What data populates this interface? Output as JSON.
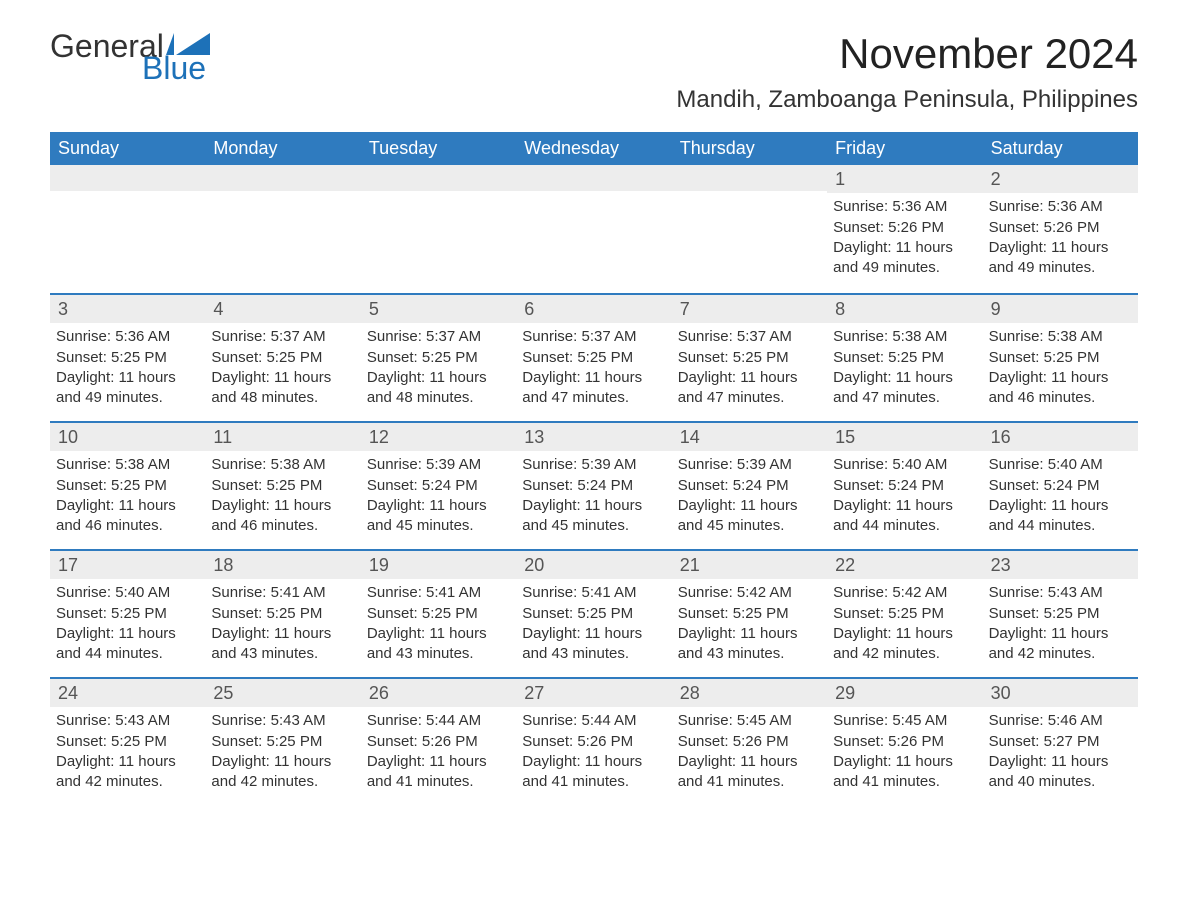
{
  "logo": {
    "word1": "General",
    "word2": "Blue"
  },
  "title": "November 2024",
  "location": "Mandih, Zamboanga Peninsula, Philippines",
  "colors": {
    "header_bg": "#2f7bbf",
    "header_text": "#ffffff",
    "daynum_bg": "#ededed",
    "border": "#2f7bbf",
    "logo_blue": "#1d71b8",
    "text": "#333333"
  },
  "day_labels": [
    "Sunday",
    "Monday",
    "Tuesday",
    "Wednesday",
    "Thursday",
    "Friday",
    "Saturday"
  ],
  "weeks": [
    [
      {
        "blank": true
      },
      {
        "blank": true
      },
      {
        "blank": true
      },
      {
        "blank": true
      },
      {
        "blank": true
      },
      {
        "num": "1",
        "sunrise": "Sunrise: 5:36 AM",
        "sunset": "Sunset: 5:26 PM",
        "daylight": "Daylight: 11 hours and 49 minutes."
      },
      {
        "num": "2",
        "sunrise": "Sunrise: 5:36 AM",
        "sunset": "Sunset: 5:26 PM",
        "daylight": "Daylight: 11 hours and 49 minutes."
      }
    ],
    [
      {
        "num": "3",
        "sunrise": "Sunrise: 5:36 AM",
        "sunset": "Sunset: 5:25 PM",
        "daylight": "Daylight: 11 hours and 49 minutes."
      },
      {
        "num": "4",
        "sunrise": "Sunrise: 5:37 AM",
        "sunset": "Sunset: 5:25 PM",
        "daylight": "Daylight: 11 hours and 48 minutes."
      },
      {
        "num": "5",
        "sunrise": "Sunrise: 5:37 AM",
        "sunset": "Sunset: 5:25 PM",
        "daylight": "Daylight: 11 hours and 48 minutes."
      },
      {
        "num": "6",
        "sunrise": "Sunrise: 5:37 AM",
        "sunset": "Sunset: 5:25 PM",
        "daylight": "Daylight: 11 hours and 47 minutes."
      },
      {
        "num": "7",
        "sunrise": "Sunrise: 5:37 AM",
        "sunset": "Sunset: 5:25 PM",
        "daylight": "Daylight: 11 hours and 47 minutes."
      },
      {
        "num": "8",
        "sunrise": "Sunrise: 5:38 AM",
        "sunset": "Sunset: 5:25 PM",
        "daylight": "Daylight: 11 hours and 47 minutes."
      },
      {
        "num": "9",
        "sunrise": "Sunrise: 5:38 AM",
        "sunset": "Sunset: 5:25 PM",
        "daylight": "Daylight: 11 hours and 46 minutes."
      }
    ],
    [
      {
        "num": "10",
        "sunrise": "Sunrise: 5:38 AM",
        "sunset": "Sunset: 5:25 PM",
        "daylight": "Daylight: 11 hours and 46 minutes."
      },
      {
        "num": "11",
        "sunrise": "Sunrise: 5:38 AM",
        "sunset": "Sunset: 5:25 PM",
        "daylight": "Daylight: 11 hours and 46 minutes."
      },
      {
        "num": "12",
        "sunrise": "Sunrise: 5:39 AM",
        "sunset": "Sunset: 5:24 PM",
        "daylight": "Daylight: 11 hours and 45 minutes."
      },
      {
        "num": "13",
        "sunrise": "Sunrise: 5:39 AM",
        "sunset": "Sunset: 5:24 PM",
        "daylight": "Daylight: 11 hours and 45 minutes."
      },
      {
        "num": "14",
        "sunrise": "Sunrise: 5:39 AM",
        "sunset": "Sunset: 5:24 PM",
        "daylight": "Daylight: 11 hours and 45 minutes."
      },
      {
        "num": "15",
        "sunrise": "Sunrise: 5:40 AM",
        "sunset": "Sunset: 5:24 PM",
        "daylight": "Daylight: 11 hours and 44 minutes."
      },
      {
        "num": "16",
        "sunrise": "Sunrise: 5:40 AM",
        "sunset": "Sunset: 5:24 PM",
        "daylight": "Daylight: 11 hours and 44 minutes."
      }
    ],
    [
      {
        "num": "17",
        "sunrise": "Sunrise: 5:40 AM",
        "sunset": "Sunset: 5:25 PM",
        "daylight": "Daylight: 11 hours and 44 minutes."
      },
      {
        "num": "18",
        "sunrise": "Sunrise: 5:41 AM",
        "sunset": "Sunset: 5:25 PM",
        "daylight": "Daylight: 11 hours and 43 minutes."
      },
      {
        "num": "19",
        "sunrise": "Sunrise: 5:41 AM",
        "sunset": "Sunset: 5:25 PM",
        "daylight": "Daylight: 11 hours and 43 minutes."
      },
      {
        "num": "20",
        "sunrise": "Sunrise: 5:41 AM",
        "sunset": "Sunset: 5:25 PM",
        "daylight": "Daylight: 11 hours and 43 minutes."
      },
      {
        "num": "21",
        "sunrise": "Sunrise: 5:42 AM",
        "sunset": "Sunset: 5:25 PM",
        "daylight": "Daylight: 11 hours and 43 minutes."
      },
      {
        "num": "22",
        "sunrise": "Sunrise: 5:42 AM",
        "sunset": "Sunset: 5:25 PM",
        "daylight": "Daylight: 11 hours and 42 minutes."
      },
      {
        "num": "23",
        "sunrise": "Sunrise: 5:43 AM",
        "sunset": "Sunset: 5:25 PM",
        "daylight": "Daylight: 11 hours and 42 minutes."
      }
    ],
    [
      {
        "num": "24",
        "sunrise": "Sunrise: 5:43 AM",
        "sunset": "Sunset: 5:25 PM",
        "daylight": "Daylight: 11 hours and 42 minutes."
      },
      {
        "num": "25",
        "sunrise": "Sunrise: 5:43 AM",
        "sunset": "Sunset: 5:25 PM",
        "daylight": "Daylight: 11 hours and 42 minutes."
      },
      {
        "num": "26",
        "sunrise": "Sunrise: 5:44 AM",
        "sunset": "Sunset: 5:26 PM",
        "daylight": "Daylight: 11 hours and 41 minutes."
      },
      {
        "num": "27",
        "sunrise": "Sunrise: 5:44 AM",
        "sunset": "Sunset: 5:26 PM",
        "daylight": "Daylight: 11 hours and 41 minutes."
      },
      {
        "num": "28",
        "sunrise": "Sunrise: 5:45 AM",
        "sunset": "Sunset: 5:26 PM",
        "daylight": "Daylight: 11 hours and 41 minutes."
      },
      {
        "num": "29",
        "sunrise": "Sunrise: 5:45 AM",
        "sunset": "Sunset: 5:26 PM",
        "daylight": "Daylight: 11 hours and 41 minutes."
      },
      {
        "num": "30",
        "sunrise": "Sunrise: 5:46 AM",
        "sunset": "Sunset: 5:27 PM",
        "daylight": "Daylight: 11 hours and 40 minutes."
      }
    ]
  ]
}
